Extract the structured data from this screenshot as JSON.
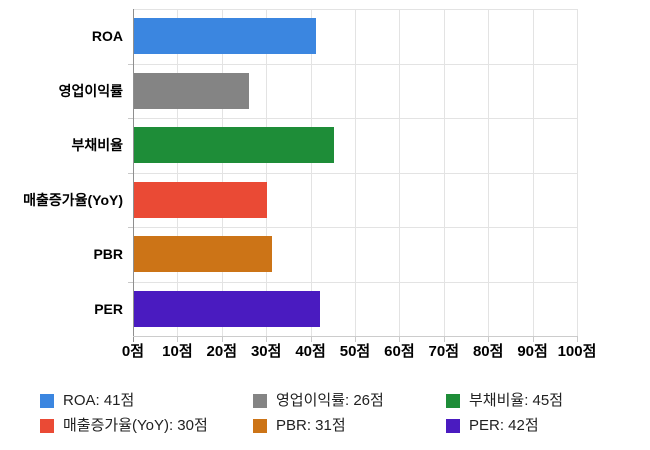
{
  "chart_data": {
    "type": "bar",
    "orientation": "horizontal",
    "title": "",
    "xlabel": "",
    "ylabel": "",
    "unit": "점",
    "categories": [
      "ROA",
      "영업이익률",
      "부채비율",
      "매출증가율(YoY)",
      "PBR",
      "PER"
    ],
    "values": [
      41,
      26,
      45,
      30,
      31,
      42
    ],
    "colors": [
      "#3b86e0",
      "#848484",
      "#1e8d38",
      "#ea4a35",
      "#cc7417",
      "#4a1bc0"
    ],
    "xlim": [
      0,
      100
    ],
    "x_ticks": [
      0,
      10,
      20,
      30,
      40,
      50,
      60,
      70,
      80,
      90,
      100
    ],
    "x_tick_labels": [
      "0점",
      "10점",
      "20점",
      "30점",
      "40점",
      "50점",
      "60점",
      "70점",
      "80점",
      "90점",
      "100점"
    ],
    "grid": true,
    "legend_position": "bottom",
    "legend_entries": [
      {
        "label": "ROA: 41점",
        "color": "#3b86e0"
      },
      {
        "label": "영업이익률: 26점",
        "color": "#848484"
      },
      {
        "label": "부채비율: 45점",
        "color": "#1e8d38"
      },
      {
        "label": "매출증가율(YoY): 30점",
        "color": "#ea4a35"
      },
      {
        "label": "PBR: 31점",
        "color": "#cc7417"
      },
      {
        "label": "PER: 42점",
        "color": "#4a1bc0"
      }
    ]
  }
}
